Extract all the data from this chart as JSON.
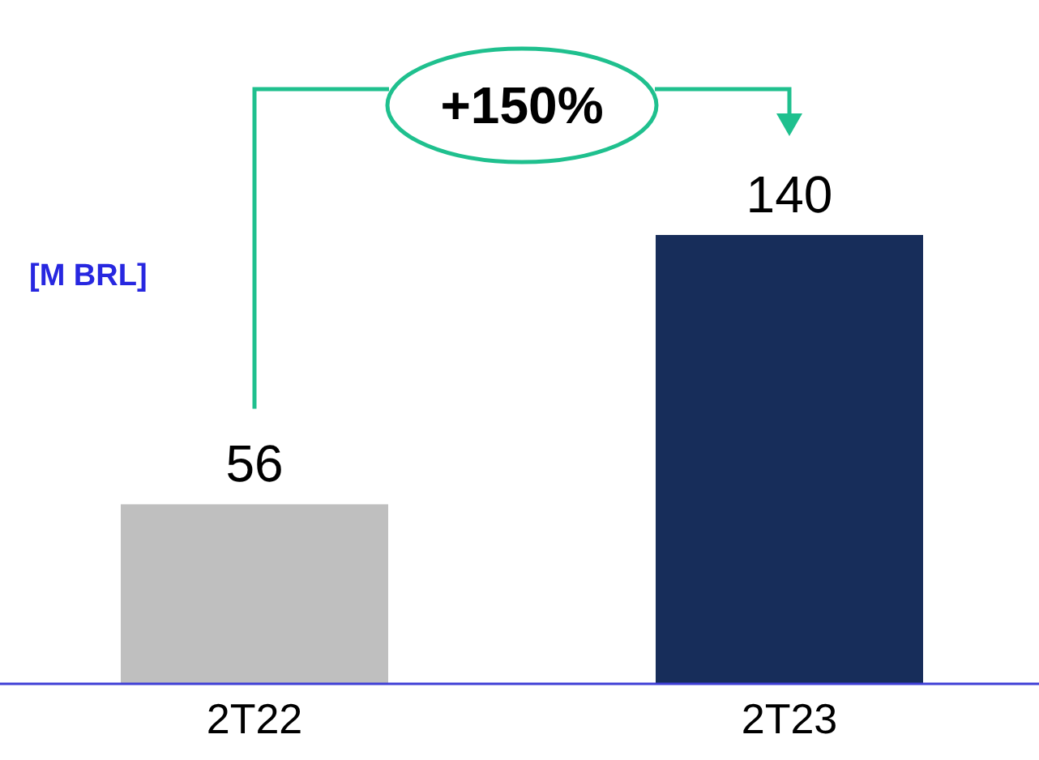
{
  "chart_data": {
    "type": "bar",
    "categories": [
      "2T22",
      "2T23"
    ],
    "values": [
      56,
      140
    ],
    "colors": [
      "#bfbfbf",
      "#172d5a"
    ],
    "data_labels": true,
    "ylabel": "[M BRL]",
    "annotations": [
      "+150%"
    ]
  }
}
